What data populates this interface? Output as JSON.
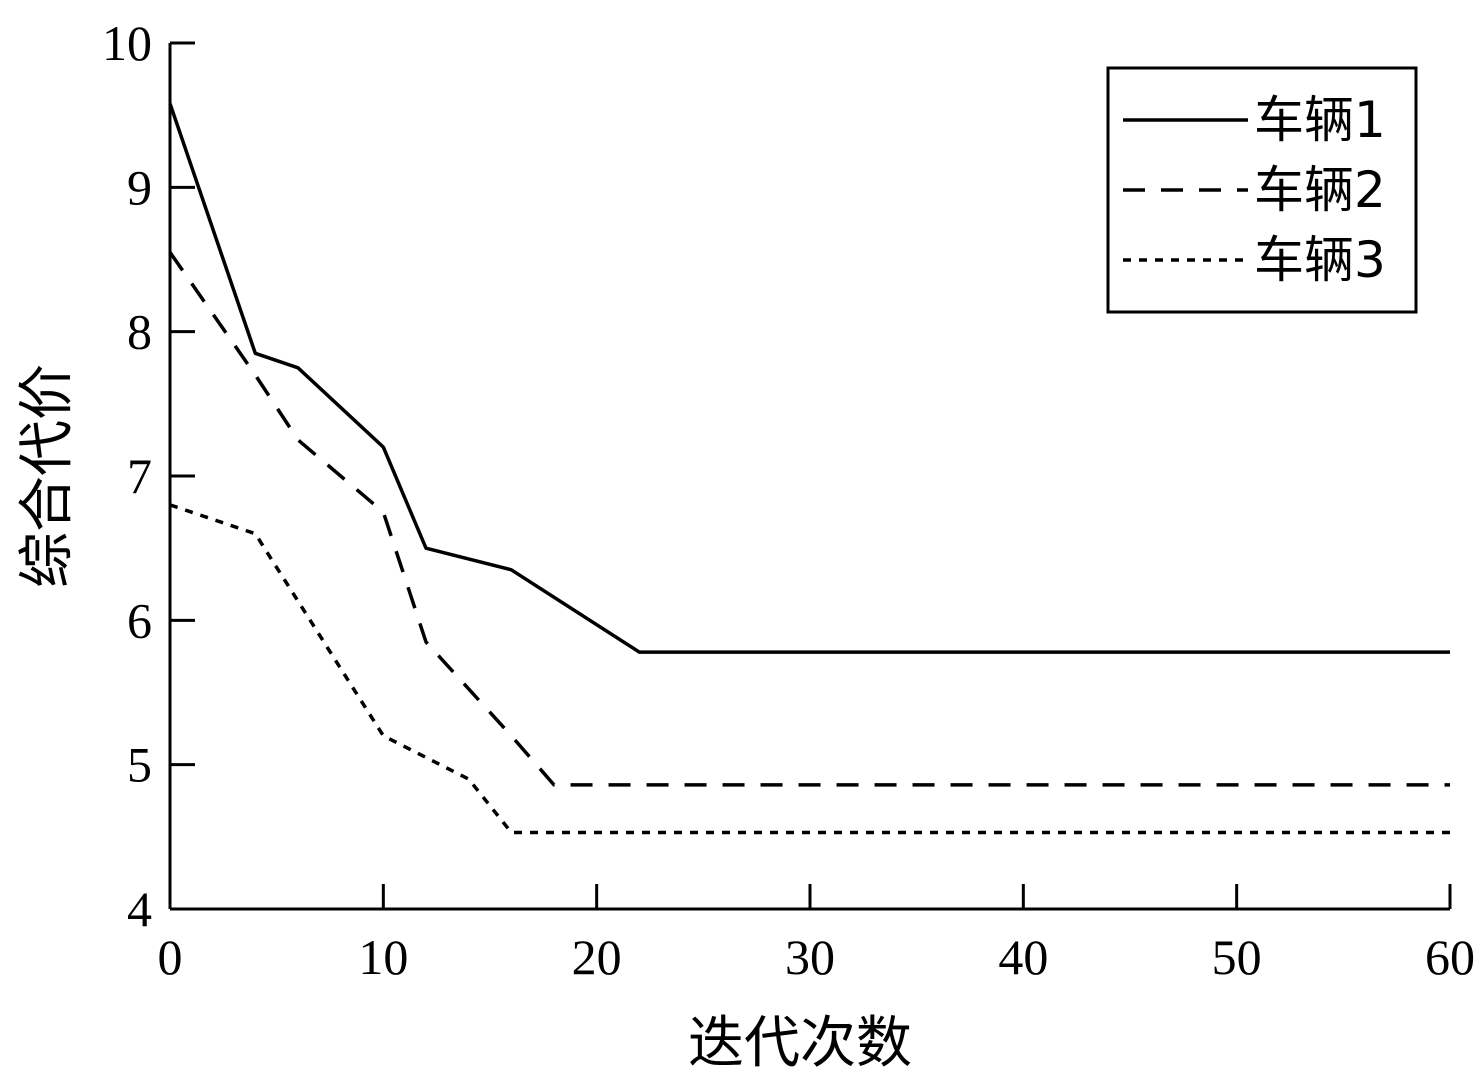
{
  "chart_data": {
    "type": "line",
    "title": "",
    "xlabel": "迭代次数",
    "ylabel": "综合代价",
    "xlim": [
      0,
      60
    ],
    "ylim": [
      4,
      10
    ],
    "xticks": [
      0,
      10,
      20,
      30,
      40,
      50,
      60
    ],
    "yticks": [
      4,
      5,
      6,
      7,
      8,
      9,
      10
    ],
    "grid": false,
    "legend_position": "top-right",
    "series": [
      {
        "name": "车辆1",
        "style": "solid",
        "points": [
          [
            0,
            9.58
          ],
          [
            4,
            7.85
          ],
          [
            6,
            7.75
          ],
          [
            10,
            7.2
          ],
          [
            12,
            6.5
          ],
          [
            16,
            6.35
          ],
          [
            22,
            5.78
          ],
          [
            60,
            5.78
          ]
        ]
      },
      {
        "name": "车辆2",
        "style": "dashed",
        "points": [
          [
            0,
            8.55
          ],
          [
            4,
            7.7
          ],
          [
            6,
            7.25
          ],
          [
            10,
            6.75
          ],
          [
            12,
            5.85
          ],
          [
            16,
            5.2
          ],
          [
            18,
            4.86
          ],
          [
            60,
            4.86
          ]
        ]
      },
      {
        "name": "车辆3",
        "style": "dotted",
        "points": [
          [
            0,
            6.8
          ],
          [
            4,
            6.6
          ],
          [
            10,
            5.2
          ],
          [
            14,
            4.9
          ],
          [
            16,
            4.53
          ],
          [
            60,
            4.53
          ]
        ]
      }
    ]
  }
}
